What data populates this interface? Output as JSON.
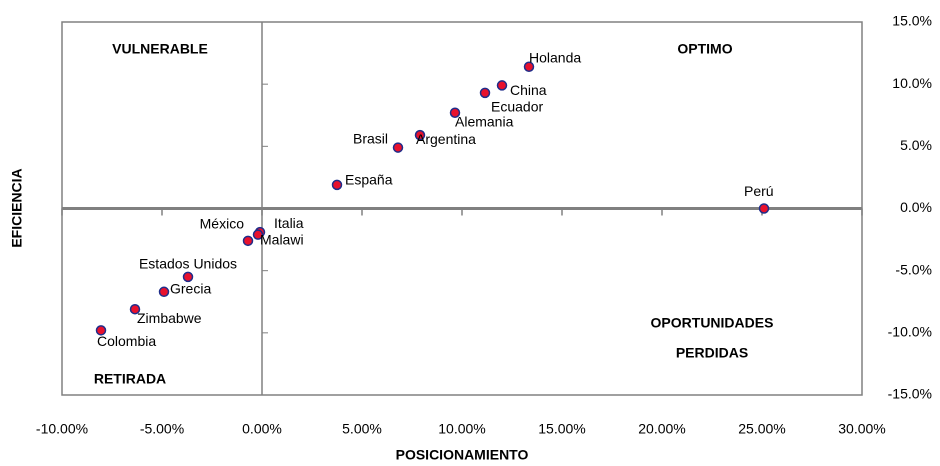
{
  "chart_data": {
    "type": "scatter",
    "x_label": "POSICIONAMIENTO",
    "y_label": "EFICIENCIA",
    "quadrant_labels": [
      "VULNERABLE",
      "OPTIMO",
      "RETIRADA",
      "OPORTUNIDADES",
      "PERDIDAS"
    ],
    "labels": [
      "Holanda",
      "China",
      "Ecuador",
      "Alemania",
      "Argentina",
      "Brasil",
      "España",
      "Perú",
      "Italia",
      "Malawi",
      "México",
      "Estados Unidos",
      "Grecia",
      "Zimbabwe",
      "Colombia"
    ],
    "x": [
      13.35,
      12.0,
      11.15,
      9.65,
      7.9,
      6.8,
      3.75,
      25.1,
      -0.1,
      -0.2,
      -0.7,
      -3.7,
      -4.9,
      -6.35,
      -8.05
    ],
    "values": [
      11.4,
      9.9,
      9.3,
      7.7,
      5.9,
      4.9,
      1.9,
      0,
      -1.9,
      -2.1,
      -2.6,
      -5.5,
      -6.7,
      -8.1,
      -9.8
    ],
    "color": "#e8112d",
    "edge_color": "#1f2d8a",
    "xlim": [
      -10,
      30
    ],
    "xticks": [
      {
        "value": -10,
        "label": "-10.00%"
      },
      {
        "value": -5,
        "label": "-5.00%"
      },
      {
        "value": 0,
        "label": "0.00%"
      },
      {
        "value": 5,
        "label": "5.00%"
      },
      {
        "value": 10,
        "label": "10.00%"
      },
      {
        "value": 15,
        "label": "15.00%"
      },
      {
        "value": 20,
        "label": "20.00%"
      },
      {
        "value": 25,
        "label": "25.00%"
      },
      {
        "value": 30,
        "label": "30.00%"
      }
    ],
    "ylim": [
      -15,
      15
    ],
    "yticks": [
      {
        "value": 15,
        "label": "15.0%"
      },
      {
        "value": 10,
        "label": "10.0%"
      },
      {
        "value": 5,
        "label": "5.0%"
      },
      {
        "value": 0,
        "label": "0.0%"
      },
      {
        "value": -5,
        "label": "-5.0%"
      },
      {
        "value": -10,
        "label": "-10.0%"
      },
      {
        "value": -15,
        "label": "-15.0%"
      }
    ]
  }
}
